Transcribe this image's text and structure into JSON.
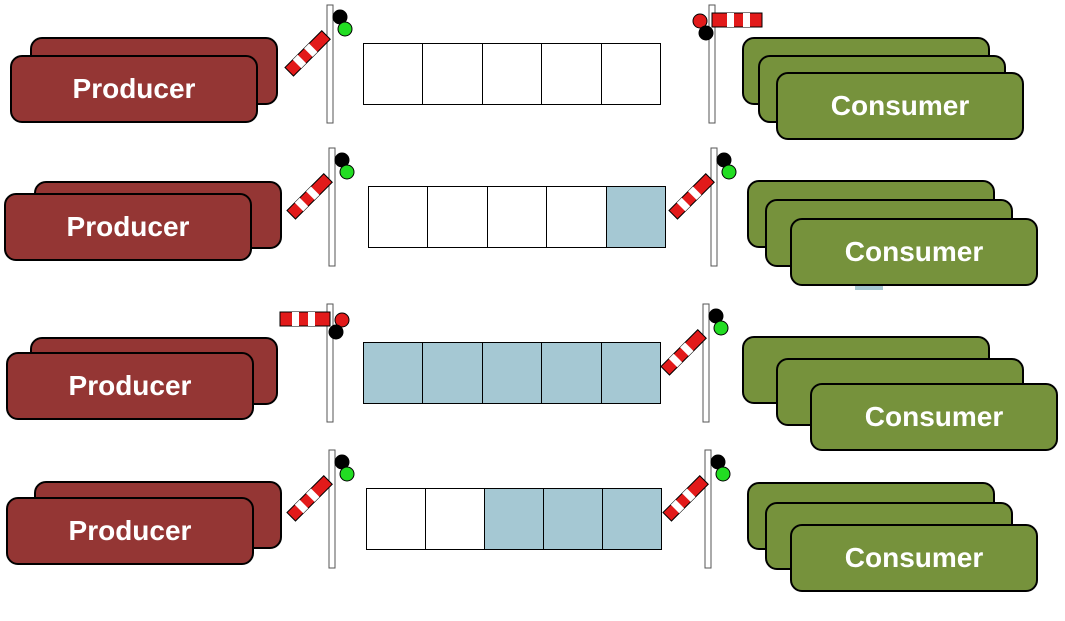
{
  "colors": {
    "producer": "#943634",
    "consumer": "#76923c",
    "slot_full": "#a5c8d3",
    "slot_empty": "#ffffff",
    "arm_red": "#e21a1a",
    "light_red": "#e21a1a",
    "light_green": "#22dd22",
    "light_black": "#000000"
  },
  "rows": [
    {
      "producer_label": "Producer",
      "consumer_label": "Consumer",
      "buffer": [
        0,
        0,
        0,
        0,
        0
      ],
      "producer_signal": "go",
      "consumer_signal": "stop"
    },
    {
      "producer_label": "Producer",
      "consumer_label": "Consumer",
      "buffer": [
        0,
        0,
        0,
        0,
        1
      ],
      "producer_signal": "go",
      "consumer_signal": "go"
    },
    {
      "producer_label": "Producer",
      "consumer_label": "Consumer",
      "buffer": [
        1,
        1,
        1,
        1,
        1
      ],
      "producer_signal": "stop",
      "consumer_signal": "go"
    },
    {
      "producer_label": "Producer",
      "consumer_label": "Consumer",
      "buffer": [
        0,
        0,
        1,
        1,
        1
      ],
      "producer_signal": "go",
      "consumer_signal": "go"
    }
  ]
}
